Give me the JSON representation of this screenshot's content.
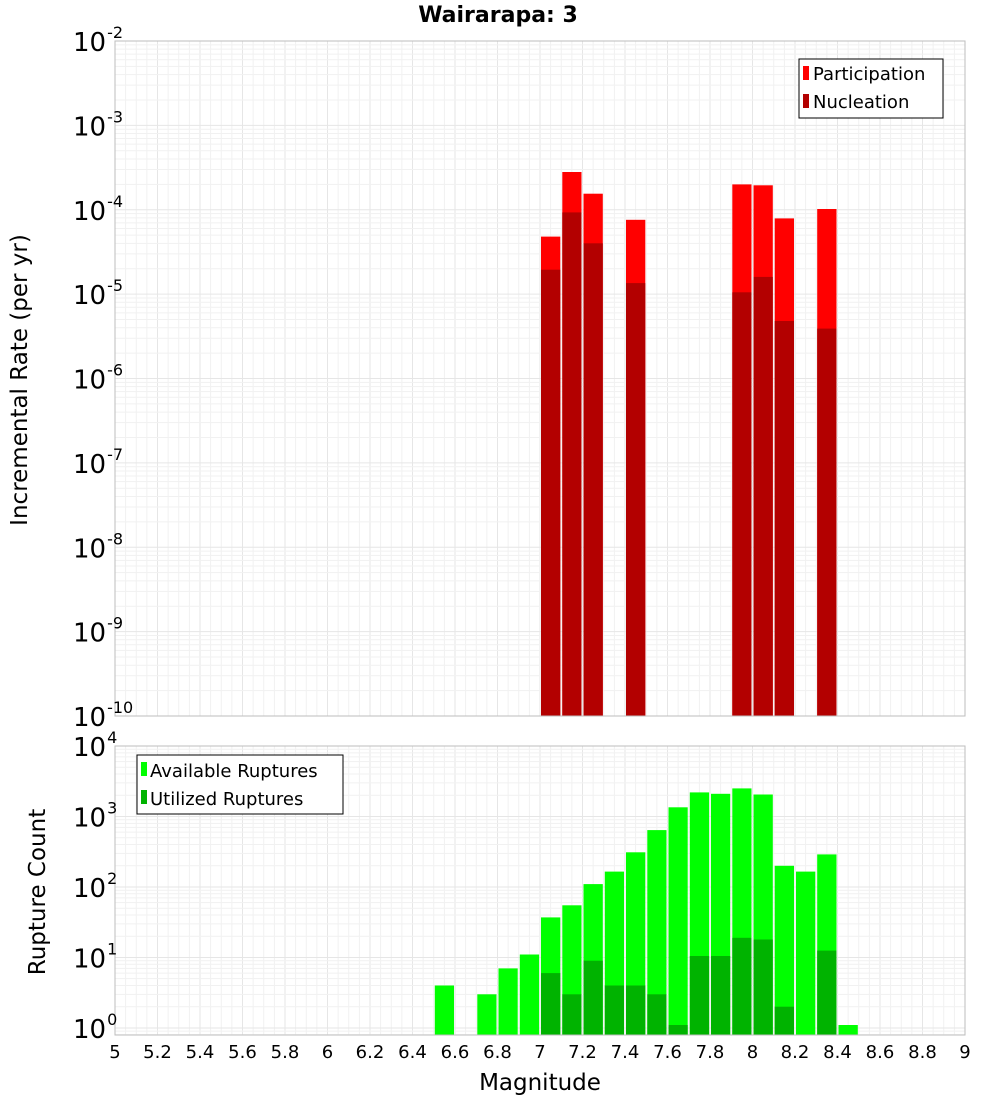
{
  "chart_data": [
    {
      "id": "top",
      "type": "bar",
      "title": "Wairarapa: 3",
      "ylabel": "Incremental Rate (per yr)",
      "xlabel": "",
      "xlim": [
        5,
        9
      ],
      "ylim_exp": [
        -10,
        -2
      ],
      "yscale": "log",
      "y_ticks": [
        {
          "base": "10",
          "exp": "-10",
          "value": -10
        },
        {
          "base": "10",
          "exp": "-9",
          "value": -9
        },
        {
          "base": "10",
          "exp": "-8",
          "value": -8
        },
        {
          "base": "10",
          "exp": "-7",
          "value": -7
        },
        {
          "base": "10",
          "exp": "-6",
          "value": -6
        },
        {
          "base": "10",
          "exp": "-5",
          "value": -5
        },
        {
          "base": "10",
          "exp": "-4",
          "value": -4
        },
        {
          "base": "10",
          "exp": "-3",
          "value": -3
        },
        {
          "base": "10",
          "exp": "-2",
          "value": -2
        }
      ],
      "legend": [
        {
          "label": "Participation",
          "color": "#ff0000"
        },
        {
          "label": "Nucleation",
          "color": "#b30000"
        }
      ],
      "series": [
        {
          "name": "Participation",
          "color": "#ff0000",
          "x": [
            7.05,
            7.15,
            7.25,
            7.45,
            7.95,
            8.05,
            8.15,
            8.35
          ],
          "values": [
            4.8e-05,
            0.00028,
            0.000155,
            7.6e-05,
            0.0002,
            0.000195,
            7.9e-05,
            0.000102
          ]
        },
        {
          "name": "Nucleation",
          "color": "#b30000",
          "x": [
            7.05,
            7.15,
            7.25,
            7.45,
            7.95,
            8.05,
            8.15,
            8.35
          ],
          "values": [
            1.95e-05,
            9.3e-05,
            4e-05,
            1.35e-05,
            1.05e-05,
            1.6e-05,
            4.8e-06,
            3.9e-06
          ]
        }
      ]
    },
    {
      "id": "bottom",
      "type": "bar",
      "title": "",
      "ylabel": "Rupture Count",
      "xlabel": "Magnitude",
      "xlim": [
        5,
        9
      ],
      "ylim_exp": [
        -0.1,
        4
      ],
      "yscale": "log",
      "x_ticks": [
        "5",
        "5.2",
        "5.4",
        "5.6",
        "5.8",
        "6",
        "6.2",
        "6.4",
        "6.6",
        "6.8",
        "7",
        "7.2",
        "7.4",
        "7.6",
        "7.8",
        "8",
        "8.2",
        "8.4",
        "8.6",
        "8.8",
        "9"
      ],
      "y_ticks": [
        {
          "base": "10",
          "exp": "0",
          "value": 0
        },
        {
          "base": "10",
          "exp": "1",
          "value": 1
        },
        {
          "base": "10",
          "exp": "2",
          "value": 2
        },
        {
          "base": "10",
          "exp": "3",
          "value": 3
        },
        {
          "base": "10",
          "exp": "4",
          "value": 4
        }
      ],
      "legend": [
        {
          "label": "Available Ruptures",
          "color": "#00ff00"
        },
        {
          "label": "Utilized Ruptures",
          "color": "#00b300"
        }
      ],
      "series": [
        {
          "name": "Available Ruptures",
          "color": "#00ff00",
          "x": [
            6.55,
            6.75,
            6.85,
            6.95,
            7.05,
            7.15,
            7.25,
            7.35,
            7.45,
            7.55,
            7.65,
            7.75,
            7.85,
            7.95,
            8.05,
            8.15,
            8.25,
            8.35,
            8.45
          ],
          "values": [
            4,
            3,
            7,
            11,
            37,
            55,
            110,
            165,
            310,
            640,
            1350,
            2200,
            2100,
            2500,
            2050,
            200,
            165,
            290,
            1.1
          ]
        },
        {
          "name": "Utilized Ruptures",
          "color": "#00b300",
          "x": [
            7.05,
            7.15,
            7.25,
            7.35,
            7.45,
            7.55,
            7.65,
            7.75,
            7.85,
            7.95,
            8.05,
            8.15,
            8.35
          ],
          "values": [
            6,
            3,
            9,
            4,
            4,
            3,
            1.1,
            10.5,
            10.5,
            19,
            18,
            2,
            12.5
          ]
        }
      ]
    }
  ]
}
